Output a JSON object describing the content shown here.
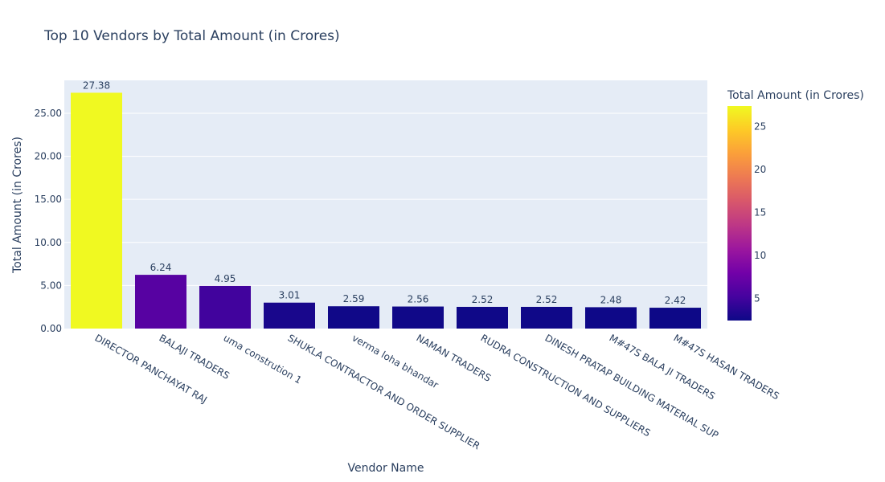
{
  "chart_data": {
    "type": "bar",
    "title": "Top 10 Vendors by Total Amount (in Crores)",
    "xlabel": "Vendor Name",
    "ylabel": "Total Amount (in Crores)",
    "ylim": [
      0,
      28.82
    ],
    "yticks": [
      0,
      5,
      10,
      15,
      20,
      25
    ],
    "ytick_labels": [
      "0.00",
      "5.00",
      "10.00",
      "15.00",
      "20.00",
      "25.00"
    ],
    "categories": [
      "DIRECTOR PANCHAYAT RAJ",
      "BALAJI TRADERS",
      "uma constrution 1",
      "SHUKLA CONTRACTOR AND ORDER SUPPLIER",
      "verma loha bhandar",
      "NAMAN TRADERS",
      "RUDRA CONSTRUCTION AND SUPPLIERS",
      "DINESH PRATAP BUILDING MATERIAL SUP",
      "M#47S BALA JI TRADERS",
      "M#47S HASAN TRADERS"
    ],
    "values": [
      27.38,
      6.24,
      4.95,
      3.01,
      2.59,
      2.56,
      2.52,
      2.52,
      2.48,
      2.42
    ],
    "value_labels": [
      "27.38",
      "6.24",
      "4.95",
      "3.01",
      "2.59",
      "2.56",
      "2.52",
      "2.52",
      "2.48",
      "2.42"
    ],
    "grid": true,
    "colorbar": {
      "title": "Total Amount (in Crores)",
      "cmin": 2.42,
      "cmax": 27.38,
      "ticks": [
        5,
        10,
        15,
        20,
        25
      ],
      "colorscale": [
        "#0d0887",
        "#46039f",
        "#7201a8",
        "#9c179e",
        "#bd3786",
        "#d8576b",
        "#ed7953",
        "#fb9f3a",
        "#fdca26",
        "#f0f921"
      ]
    },
    "colors": {
      "plot_bg": "#e5ecf6",
      "grid": "#ffffff",
      "text": "#2a3f5f"
    }
  }
}
